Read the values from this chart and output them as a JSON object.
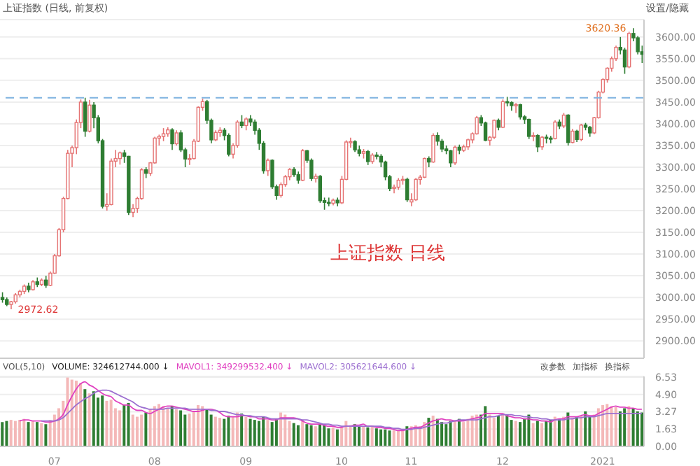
{
  "chart_data": [
    {
      "type": "candlestick",
      "title": "上证指数 (日线, 前复权)",
      "annotations": [
        "上证指数 日线",
        "3620.36",
        "2972.62",
        "设置/隐藏"
      ],
      "categories": [
        null,
        null,
        null,
        null,
        null,
        null,
        null,
        null,
        null,
        null,
        null,
        null,
        null,
        null,
        null,
        null,
        null,
        null,
        null,
        null,
        null,
        null,
        null,
        null,
        null,
        null,
        null,
        null,
        null,
        null,
        null,
        null,
        null,
        null,
        null,
        null,
        null,
        null,
        null,
        null,
        null,
        null,
        null,
        null,
        null,
        null,
        null,
        null,
        null,
        null,
        null,
        null,
        null,
        null,
        null,
        null,
        null,
        null,
        null,
        null,
        null,
        null,
        null,
        null,
        null,
        null,
        null,
        null,
        null,
        null,
        null,
        null,
        null,
        null,
        null,
        null,
        null,
        null,
        null,
        null,
        null,
        null,
        null,
        null,
        null,
        null,
        null,
        null,
        null,
        null,
        null,
        null,
        null,
        null,
        null,
        null,
        null,
        null,
        null,
        null,
        null,
        null,
        null,
        null,
        null,
        null,
        null,
        null,
        null,
        null,
        null,
        null,
        null,
        null,
        null,
        null,
        null,
        null,
        null,
        null,
        null,
        null,
        null,
        null,
        null,
        null,
        null,
        null,
        null,
        null,
        null,
        null,
        null,
        null,
        null,
        null,
        null,
        null,
        null,
        null,
        null,
        null,
        null,
        null,
        null,
        null,
        null,
        null
      ],
      "ohlc": [
        [
          3000,
          3012,
          2988,
          2995
        ],
        [
          2995,
          3000,
          2980,
          2984
        ],
        [
          2984,
          2992,
          2972.62,
          2990
        ],
        [
          2990,
          3010,
          2986,
          3006
        ],
        [
          3006,
          3018,
          3000,
          3014
        ],
        [
          3014,
          3030,
          3008,
          3026
        ],
        [
          3026,
          3034,
          3012,
          3018
        ],
        [
          3018,
          3040,
          3016,
          3036
        ],
        [
          3036,
          3046,
          3024,
          3030
        ],
        [
          3030,
          3044,
          3026,
          3040
        ],
        [
          3040,
          3050,
          3022,
          3028
        ],
        [
          3028,
          3060,
          3026,
          3056
        ],
        [
          3056,
          3100,
          3054,
          3096
        ],
        [
          3096,
          3160,
          3094,
          3156
        ],
        [
          3156,
          3232,
          3150,
          3228
        ],
        [
          3228,
          3340,
          3226,
          3332
        ],
        [
          3332,
          3350,
          3300,
          3345
        ],
        [
          3345,
          3410,
          3330,
          3403
        ],
        [
          3403,
          3456,
          3390,
          3450
        ],
        [
          3450,
          3460,
          3370,
          3383
        ],
        [
          3383,
          3455,
          3380,
          3443
        ],
        [
          3443,
          3450,
          3390,
          3414
        ],
        [
          3414,
          3420,
          3355,
          3361
        ],
        [
          3361,
          3365,
          3205,
          3210
        ],
        [
          3210,
          3240,
          3200,
          3214
        ],
        [
          3214,
          3320,
          3212,
          3314
        ],
        [
          3314,
          3340,
          3300,
          3320
        ],
        [
          3320,
          3336,
          3306,
          3333
        ],
        [
          3333,
          3340,
          3310,
          3325
        ],
        [
          3325,
          3326,
          3190,
          3196
        ],
        [
          3196,
          3215,
          3185,
          3205
        ],
        [
          3205,
          3232,
          3195,
          3228
        ],
        [
          3228,
          3298,
          3225,
          3294
        ],
        [
          3294,
          3300,
          3275,
          3286
        ],
        [
          3286,
          3312,
          3280,
          3310
        ],
        [
          3310,
          3370,
          3308,
          3367
        ],
        [
          3367,
          3375,
          3350,
          3371
        ],
        [
          3371,
          3390,
          3360,
          3377
        ],
        [
          3377,
          3392,
          3370,
          3386
        ],
        [
          3386,
          3390,
          3340,
          3354
        ],
        [
          3354,
          3385,
          3350,
          3379
        ],
        [
          3379,
          3385,
          3335,
          3340
        ],
        [
          3340,
          3345,
          3300,
          3319
        ],
        [
          3319,
          3330,
          3305,
          3320
        ],
        [
          3320,
          3365,
          3318,
          3360
        ],
        [
          3360,
          3440,
          3358,
          3438
        ],
        [
          3438,
          3458,
          3430,
          3451
        ],
        [
          3451,
          3455,
          3400,
          3408
        ],
        [
          3408,
          3412,
          3355,
          3363
        ],
        [
          3363,
          3385,
          3360,
          3380
        ],
        [
          3380,
          3392,
          3370,
          3385
        ],
        [
          3385,
          3390,
          3362,
          3373
        ],
        [
          3373,
          3378,
          3325,
          3330
        ],
        [
          3330,
          3355,
          3320,
          3350
        ],
        [
          3350,
          3408,
          3345,
          3404
        ],
        [
          3404,
          3420,
          3390,
          3396
        ],
        [
          3396,
          3415,
          3385,
          3411
        ],
        [
          3411,
          3420,
          3395,
          3404
        ],
        [
          3404,
          3410,
          3375,
          3385
        ],
        [
          3385,
          3390,
          3340,
          3355
        ],
        [
          3355,
          3360,
          3285,
          3292
        ],
        [
          3292,
          3320,
          3280,
          3316
        ],
        [
          3316,
          3318,
          3250,
          3255
        ],
        [
          3255,
          3260,
          3225,
          3235
        ],
        [
          3235,
          3265,
          3230,
          3260
        ],
        [
          3260,
          3282,
          3255,
          3278
        ],
        [
          3278,
          3298,
          3270,
          3295
        ],
        [
          3295,
          3300,
          3278,
          3283
        ],
        [
          3283,
          3290,
          3262,
          3270
        ],
        [
          3270,
          3342,
          3268,
          3338
        ],
        [
          3338,
          3340,
          3310,
          3316
        ],
        [
          3316,
          3320,
          3268,
          3274
        ],
        [
          3274,
          3285,
          3265,
          3279
        ],
        [
          3279,
          3282,
          3218,
          3223
        ],
        [
          3223,
          3230,
          3202,
          3219
        ],
        [
          3219,
          3230,
          3210,
          3217
        ],
        [
          3217,
          3228,
          3212,
          3224
        ],
        [
          3224,
          3230,
          3210,
          3218
        ],
        [
          3218,
          3280,
          3215,
          3272
        ],
        [
          3272,
          3362,
          3270,
          3358
        ],
        [
          3358,
          3368,
          3345,
          3359
        ],
        [
          3359,
          3362,
          3335,
          3340
        ],
        [
          3340,
          3350,
          3325,
          3332
        ],
        [
          3332,
          3342,
          3320,
          3336
        ],
        [
          3336,
          3340,
          3305,
          3313
        ],
        [
          3313,
          3332,
          3308,
          3328
        ],
        [
          3328,
          3335,
          3318,
          3325
        ],
        [
          3325,
          3330,
          3300,
          3312
        ],
        [
          3312,
          3315,
          3270,
          3278
        ],
        [
          3278,
          3282,
          3245,
          3251
        ],
        [
          3251,
          3260,
          3240,
          3254
        ],
        [
          3254,
          3275,
          3248,
          3270
        ],
        [
          3270,
          3280,
          3260,
          3272
        ],
        [
          3272,
          3276,
          3220,
          3225
        ],
        [
          3220,
          3240,
          3210,
          3225
        ],
        [
          3225,
          3275,
          3222,
          3272
        ],
        [
          3272,
          3282,
          3260,
          3277
        ],
        [
          3277,
          3322,
          3275,
          3320
        ],
        [
          3320,
          3325,
          3300,
          3312
        ],
        [
          3312,
          3378,
          3310,
          3373
        ],
        [
          3373,
          3380,
          3350,
          3360
        ],
        [
          3360,
          3365,
          3335,
          3342
        ],
        [
          3342,
          3350,
          3330,
          3338
        ],
        [
          3338,
          3340,
          3300,
          3310
        ],
        [
          3310,
          3350,
          3305,
          3346
        ],
        [
          3346,
          3352,
          3330,
          3339
        ],
        [
          3339,
          3352,
          3335,
          3347
        ],
        [
          3347,
          3366,
          3340,
          3363
        ],
        [
          3363,
          3380,
          3355,
          3377
        ],
        [
          3377,
          3418,
          3375,
          3414
        ],
        [
          3414,
          3420,
          3395,
          3402
        ],
        [
          3402,
          3405,
          3360,
          3362
        ],
        [
          3362,
          3372,
          3350,
          3369
        ],
        [
          3369,
          3410,
          3365,
          3408
        ],
        [
          3408,
          3412,
          3385,
          3392
        ],
        [
          3392,
          3456,
          3390,
          3451
        ],
        [
          3451,
          3462,
          3440,
          3449
        ],
        [
          3449,
          3452,
          3430,
          3442
        ],
        [
          3442,
          3448,
          3425,
          3444
        ],
        [
          3444,
          3446,
          3410,
          3416
        ],
        [
          3416,
          3420,
          3400,
          3410
        ],
        [
          3410,
          3412,
          3365,
          3371
        ],
        [
          3371,
          3380,
          3360,
          3373
        ],
        [
          3373,
          3376,
          3335,
          3347
        ],
        [
          3347,
          3372,
          3340,
          3369
        ],
        [
          3369,
          3375,
          3355,
          3367
        ],
        [
          3367,
          3372,
          3355,
          3366
        ],
        [
          3366,
          3408,
          3364,
          3404
        ],
        [
          3404,
          3410,
          3388,
          3395
        ],
        [
          3395,
          3425,
          3390,
          3420
        ],
        [
          3420,
          3422,
          3350,
          3357
        ],
        [
          3357,
          3388,
          3355,
          3383
        ],
        [
          3383,
          3386,
          3358,
          3364
        ],
        [
          3364,
          3400,
          3360,
          3397
        ],
        [
          3397,
          3402,
          3385,
          3392
        ],
        [
          3392,
          3395,
          3370,
          3379
        ],
        [
          3379,
          3416,
          3376,
          3414
        ],
        [
          3414,
          3476,
          3412,
          3473
        ],
        [
          3473,
          3505,
          3470,
          3502
        ],
        [
          3502,
          3530,
          3495,
          3528
        ],
        [
          3528,
          3555,
          3520,
          3550
        ],
        [
          3550,
          3580,
          3545,
          3576
        ],
        [
          3576,
          3600,
          3560,
          3570
        ],
        [
          3570,
          3575,
          3515,
          3531
        ],
        [
          3531,
          3612,
          3528,
          3608
        ],
        [
          3608,
          3620.36,
          3590,
          3598
        ],
        [
          3598,
          3602,
          3560,
          3566
        ],
        [
          3566,
          3580,
          3540,
          3560
        ]
      ],
      "colors": [
        "#2e7d32",
        "#2e7d32",
        "#e57373",
        "#e57373",
        "#e57373",
        "#e57373",
        "#2e7d32",
        "#e57373",
        "#2e7d32",
        "#e57373",
        "#2e7d32",
        "#e57373",
        "#e57373",
        "#e57373",
        "#e57373",
        "#e57373",
        "#e57373",
        "#e57373",
        "#e57373",
        "#2e7d32",
        "#e57373",
        "#2e7d32",
        "#2e7d32",
        "#2e7d32",
        "#e57373",
        "#e57373",
        "#e57373",
        "#e57373",
        "#2e7d32",
        "#2e7d32",
        "#e57373",
        "#e57373",
        "#e57373",
        "#2e7d32",
        "#e57373",
        "#e57373",
        "#e57373",
        "#e57373",
        "#e57373",
        "#2e7d32",
        "#e57373",
        "#2e7d32",
        "#2e7d32",
        "#e57373",
        "#e57373",
        "#e57373",
        "#e57373",
        "#2e7d32",
        "#2e7d32",
        "#e57373",
        "#e57373",
        "#2e7d32",
        "#2e7d32",
        "#e57373",
        "#e57373",
        "#2e7d32",
        "#e57373",
        "#2e7d32",
        "#2e7d32",
        "#2e7d32",
        "#2e7d32",
        "#e57373",
        "#2e7d32",
        "#2e7d32",
        "#e57373",
        "#e57373",
        "#e57373",
        "#2e7d32",
        "#2e7d32",
        "#e57373",
        "#2e7d32",
        "#2e7d32",
        "#e57373",
        "#2e7d32",
        "#2e7d32",
        "#2e7d32",
        "#e57373",
        "#2e7d32",
        "#e57373",
        "#e57373",
        "#e57373",
        "#2e7d32",
        "#2e7d32",
        "#e57373",
        "#2e7d32",
        "#e57373",
        "#2e7d32",
        "#2e7d32",
        "#2e7d32",
        "#2e7d32",
        "#e57373",
        "#e57373",
        "#e57373",
        "#2e7d32",
        "#e57373",
        "#e57373",
        "#e57373",
        "#e57373",
        "#2e7d32",
        "#e57373",
        "#2e7d32",
        "#2e7d32",
        "#2e7d32",
        "#2e7d32",
        "#e57373",
        "#2e7d32",
        "#e57373",
        "#e57373",
        "#e57373",
        "#e57373",
        "#2e7d32",
        "#2e7d32",
        "#e57373",
        "#e57373",
        "#2e7d32",
        "#e57373",
        "#2e7d32",
        "#2e7d32",
        "#e57373",
        "#2e7d32",
        "#2e7d32",
        "#2e7d32",
        "#e57373",
        "#2e7d32",
        "#e57373",
        "#2e7d32",
        "#2e7d32",
        "#e57373",
        "#2e7d32",
        "#e57373",
        "#2e7d32",
        "#e57373",
        "#2e7d32",
        "#e57373",
        "#2e7d32",
        "#2e7d32",
        "#e57373",
        "#e57373",
        "#e57373",
        "#e57373",
        "#e57373",
        "#e57373",
        "#2e7d32",
        "#2e7d32",
        "#e57373",
        "#2e7d32",
        "#2e7d32",
        "#2e7d32"
      ],
      "ylim": [
        2860,
        3640
      ],
      "yticks": [
        {
          "value": 2900,
          "label": "2900.00"
        },
        {
          "value": 2950,
          "label": "2950.00"
        },
        {
          "value": 3000,
          "label": "3000.00"
        },
        {
          "value": 3050,
          "label": "3050.00"
        },
        {
          "value": 3100,
          "label": "3100.00"
        },
        {
          "value": 3150,
          "label": "3150.00"
        },
        {
          "value": 3200,
          "label": "3200.00"
        },
        {
          "value": 3250,
          "label": "3250.00"
        },
        {
          "value": 3300,
          "label": "3300.00"
        },
        {
          "value": 3350,
          "label": "3350.00"
        },
        {
          "value": 3400,
          "label": "3400.00"
        },
        {
          "value": 3450,
          "label": "3450.00"
        },
        {
          "value": 3500,
          "label": "3500.00"
        },
        {
          "value": 3550,
          "label": "3550.00"
        },
        {
          "value": 3600,
          "label": "3600.00"
        }
      ],
      "grid": "y",
      "tick_labels": "y",
      "ref_lines": [
        {
          "axis": "y",
          "value": 3460,
          "color": "#7fb3e0",
          "line_style": "dashed"
        }
      ]
    },
    {
      "type": "bar",
      "title": "VOL(5,10)",
      "legend": "top left",
      "annotations": [
        "改参数",
        "加指标",
        "换指标"
      ],
      "categories": [
        null,
        null,
        null,
        null,
        null,
        null,
        null,
        null,
        null,
        null,
        null,
        null,
        "07",
        null,
        null,
        null,
        null,
        null,
        null,
        null,
        null,
        null,
        null,
        null,
        null,
        null,
        null,
        null,
        null,
        null,
        null,
        null,
        null,
        null,
        null,
        "08",
        null,
        null,
        null,
        null,
        null,
        null,
        null,
        null,
        null,
        null,
        null,
        null,
        null,
        null,
        null,
        null,
        null,
        null,
        null,
        null,
        "09",
        null,
        null,
        null,
        null,
        null,
        null,
        null,
        null,
        null,
        null,
        null,
        null,
        null,
        null,
        null,
        null,
        null,
        null,
        null,
        null,
        null,
        "10",
        null,
        null,
        null,
        null,
        null,
        null,
        null,
        null,
        null,
        null,
        null,
        null,
        null,
        null,
        null,
        "11",
        null,
        null,
        null,
        null,
        null,
        null,
        null,
        null,
        null,
        null,
        null,
        null,
        null,
        null,
        null,
        null,
        null,
        null,
        null,
        null,
        "12",
        null,
        null,
        null,
        null,
        null,
        null,
        null,
        null,
        null,
        null,
        null,
        null,
        null,
        null,
        null,
        null,
        null,
        null,
        null,
        null,
        null,
        null,
        "2021",
        null,
        null,
        null,
        null,
        null,
        null,
        null,
        null,
        null
      ],
      "series": [
        {
          "name": "VOLUME: 324612744.000 ↓",
          "type": "bar",
          "values": [
            2.3,
            2.4,
            2.5,
            2.4,
            2.5,
            2.6,
            2.3,
            2.4,
            2.3,
            2.2,
            2.1,
            2.5,
            3.0,
            3.6,
            4.3,
            6.5,
            6.3,
            6.2,
            6.0,
            5.4,
            5.0,
            5.2,
            4.6,
            4.8,
            4.3,
            4.4,
            3.6,
            3.4,
            3.9,
            4.1,
            3.0,
            2.8,
            3.0,
            3.2,
            3.5,
            3.8,
            4.0,
            3.8,
            3.6,
            3.8,
            3.5,
            3.4,
            3.0,
            3.1,
            3.3,
            3.9,
            3.8,
            3.5,
            3.0,
            2.8,
            2.7,
            2.6,
            2.9,
            2.8,
            3.2,
            3.1,
            2.8,
            2.6,
            2.5,
            2.4,
            2.8,
            2.5,
            2.3,
            2.6,
            3.2,
            3.0,
            2.4,
            2.2,
            2.0,
            2.4,
            2.1,
            2.0,
            1.9,
            2.1,
            2.0,
            1.7,
            1.8,
            1.6,
            1.8,
            2.4,
            2.0,
            2.1,
            1.9,
            1.9,
            1.8,
            1.9,
            1.7,
            1.6,
            1.6,
            1.5,
            1.5,
            1.5,
            1.6,
            1.9,
            1.9,
            2.0,
            1.9,
            2.3,
            2.7,
            2.9,
            2.6,
            2.3,
            2.1,
            2.4,
            2.5,
            2.6,
            2.3,
            2.6,
            2.9,
            3.0,
            3.0,
            3.8,
            3.0,
            2.7,
            2.9,
            3.1,
            3.0,
            2.5,
            2.4,
            2.3,
            2.6,
            3.0,
            2.2,
            2.4,
            2.2,
            2.4,
            2.5,
            2.8,
            2.6,
            2.8,
            3.2,
            2.7,
            2.8,
            2.9,
            3.3,
            2.8,
            3.0,
            3.6,
            3.9,
            4.0,
            3.8,
            3.7,
            3.3,
            3.6,
            3.8,
            3.6,
            3.3,
            3.2
          ],
          "colors": [
            "#2e7d32",
            "#2e7d32",
            "#f4b8b8",
            "#f4b8b8",
            "#f4b8b8",
            "#f4b8b8",
            "#2e7d32",
            "#f4b8b8",
            "#2e7d32",
            "#f4b8b8",
            "#2e7d32",
            "#f4b8b8",
            "#f4b8b8",
            "#f4b8b8",
            "#f4b8b8",
            "#f4b8b8",
            "#f4b8b8",
            "#f4b8b8",
            "#f4b8b8",
            "#2e7d32",
            "#f4b8b8",
            "#2e7d32",
            "#2e7d32",
            "#2e7d32",
            "#f4b8b8",
            "#f4b8b8",
            "#f4b8b8",
            "#f4b8b8",
            "#2e7d32",
            "#2e7d32",
            "#f4b8b8",
            "#f4b8b8",
            "#f4b8b8",
            "#2e7d32",
            "#f4b8b8",
            "#f4b8b8",
            "#f4b8b8",
            "#f4b8b8",
            "#f4b8b8",
            "#2e7d32",
            "#f4b8b8",
            "#2e7d32",
            "#2e7d32",
            "#f4b8b8",
            "#f4b8b8",
            "#f4b8b8",
            "#f4b8b8",
            "#2e7d32",
            "#2e7d32",
            "#f4b8b8",
            "#f4b8b8",
            "#2e7d32",
            "#2e7d32",
            "#f4b8b8",
            "#f4b8b8",
            "#2e7d32",
            "#f4b8b8",
            "#2e7d32",
            "#2e7d32",
            "#2e7d32",
            "#2e7d32",
            "#f4b8b8",
            "#2e7d32",
            "#2e7d32",
            "#f4b8b8",
            "#f4b8b8",
            "#f4b8b8",
            "#2e7d32",
            "#2e7d32",
            "#f4b8b8",
            "#2e7d32",
            "#2e7d32",
            "#f4b8b8",
            "#2e7d32",
            "#2e7d32",
            "#2e7d32",
            "#f4b8b8",
            "#2e7d32",
            "#f4b8b8",
            "#f4b8b8",
            "#f4b8b8",
            "#2e7d32",
            "#2e7d32",
            "#f4b8b8",
            "#2e7d32",
            "#f4b8b8",
            "#2e7d32",
            "#2e7d32",
            "#2e7d32",
            "#2e7d32",
            "#f4b8b8",
            "#f4b8b8",
            "#f4b8b8",
            "#2e7d32",
            "#f4b8b8",
            "#f4b8b8",
            "#f4b8b8",
            "#f4b8b8",
            "#2e7d32",
            "#f4b8b8",
            "#2e7d32",
            "#2e7d32",
            "#2e7d32",
            "#2e7d32",
            "#f4b8b8",
            "#2e7d32",
            "#f4b8b8",
            "#f4b8b8",
            "#f4b8b8",
            "#f4b8b8",
            "#2e7d32",
            "#2e7d32",
            "#f4b8b8",
            "#f4b8b8",
            "#2e7d32",
            "#f4b8b8",
            "#2e7d32",
            "#2e7d32",
            "#f4b8b8",
            "#2e7d32",
            "#2e7d32",
            "#2e7d32",
            "#f4b8b8",
            "#2e7d32",
            "#f4b8b8",
            "#2e7d32",
            "#2e7d32",
            "#f4b8b8",
            "#2e7d32",
            "#f4b8b8",
            "#2e7d32",
            "#f4b8b8",
            "#2e7d32",
            "#f4b8b8",
            "#2e7d32",
            "#2e7d32",
            "#f4b8b8",
            "#f4b8b8",
            "#f4b8b8",
            "#f4b8b8",
            "#f4b8b8",
            "#f4b8b8",
            "#2e7d32",
            "#2e7d32",
            "#f4b8b8",
            "#2e7d32",
            "#2e7d32",
            "#2e7d32"
          ]
        },
        {
          "name": "MAVOL1: 349299532.400 ↓",
          "type": "line",
          "color": "#e040c0",
          "values": [
            null,
            null,
            null,
            null,
            2.4,
            2.5,
            2.5,
            2.4,
            2.4,
            2.4,
            2.3,
            2.3,
            2.4,
            2.6,
            3.0,
            3.9,
            4.7,
            5.4,
            5.9,
            6.1,
            5.8,
            5.6,
            5.3,
            5.0,
            4.8,
            4.7,
            4.3,
            4.1,
            3.9,
            3.9,
            3.6,
            3.4,
            3.4,
            3.2,
            3.1,
            3.3,
            3.5,
            3.7,
            3.8,
            3.8,
            3.7,
            3.6,
            3.5,
            3.4,
            3.3,
            3.3,
            3.4,
            3.5,
            3.5,
            3.4,
            3.2,
            2.9,
            2.8,
            2.8,
            2.8,
            2.9,
            2.9,
            2.8,
            2.8,
            2.6,
            2.6,
            2.6,
            2.5,
            2.5,
            2.7,
            2.7,
            2.7,
            2.7,
            2.6,
            2.4,
            2.2,
            2.1,
            2.1,
            2.1,
            2.0,
            1.9,
            1.9,
            1.8,
            1.8,
            1.9,
            1.9,
            2.0,
            2.0,
            2.1,
            1.9,
            1.9,
            1.8,
            1.8,
            1.7,
            1.7,
            1.6,
            1.5,
            1.5,
            1.6,
            1.7,
            1.8,
            1.8,
            2.0,
            2.2,
            2.4,
            2.5,
            2.6,
            2.5,
            2.5,
            2.4,
            2.4,
            2.4,
            2.5,
            2.6,
            2.7,
            2.8,
            3.1,
            3.1,
            3.1,
            3.1,
            3.1,
            2.9,
            2.8,
            2.7,
            2.7,
            2.6,
            2.6,
            2.5,
            2.5,
            2.4,
            2.4,
            2.3,
            2.5,
            2.6,
            2.6,
            2.8,
            2.8,
            2.8,
            2.9,
            3.0,
            2.9,
            2.9,
            3.1,
            3.3,
            3.5,
            3.7,
            3.8,
            3.7,
            3.7,
            3.6,
            3.6,
            3.5,
            3.5
          ]
        },
        {
          "name": "MAVOL2: 305621644.600 ↓",
          "type": "line",
          "color": "#9c6fd0",
          "values": [
            null,
            null,
            null,
            null,
            null,
            null,
            null,
            null,
            null,
            2.4,
            2.4,
            2.4,
            2.4,
            2.5,
            2.7,
            3.1,
            3.5,
            3.9,
            4.2,
            4.5,
            4.7,
            5.0,
            5.2,
            5.3,
            5.3,
            5.2,
            5.0,
            4.8,
            4.6,
            4.4,
            4.2,
            3.9,
            3.7,
            3.6,
            3.5,
            3.5,
            3.5,
            3.5,
            3.6,
            3.6,
            3.6,
            3.6,
            3.6,
            3.5,
            3.5,
            3.5,
            3.5,
            3.5,
            3.4,
            3.4,
            3.3,
            3.3,
            3.2,
            3.1,
            3.0,
            3.0,
            2.9,
            2.9,
            2.8,
            2.8,
            2.8,
            2.7,
            2.6,
            2.6,
            2.6,
            2.6,
            2.6,
            2.6,
            2.6,
            2.5,
            2.5,
            2.4,
            2.3,
            2.2,
            2.1,
            2.1,
            2.0,
            2.0,
            1.9,
            1.9,
            1.9,
            1.9,
            1.9,
            1.9,
            1.9,
            1.9,
            1.9,
            1.9,
            1.8,
            1.8,
            1.7,
            1.7,
            1.6,
            1.6,
            1.6,
            1.7,
            1.7,
            1.8,
            1.9,
            2.0,
            2.1,
            2.2,
            2.2,
            2.3,
            2.4,
            2.5,
            2.5,
            2.5,
            2.5,
            2.5,
            2.6,
            2.7,
            2.8,
            2.8,
            2.9,
            3.0,
            3.0,
            3.0,
            2.9,
            2.9,
            2.8,
            2.8,
            2.7,
            2.7,
            2.6,
            2.6,
            2.5,
            2.5,
            2.5,
            2.5,
            2.6,
            2.6,
            2.7,
            2.7,
            2.8,
            2.8,
            2.8,
            2.9,
            3.0,
            3.1,
            3.1,
            3.1,
            3.1,
            3.1,
            3.1,
            3.1,
            3.1,
            3.1
          ]
        }
      ],
      "ylim": [
        0,
        6.6
      ],
      "yticks": [
        {
          "value": 0,
          "label": "0.00"
        },
        {
          "value": 1.63,
          "label": "1.63"
        },
        {
          "value": 3.27,
          "label": "3.27"
        },
        {
          "value": 4.9,
          "label": "4.90"
        },
        {
          "value": 6.53,
          "label": "6.53"
        }
      ],
      "grid": "y"
    }
  ]
}
